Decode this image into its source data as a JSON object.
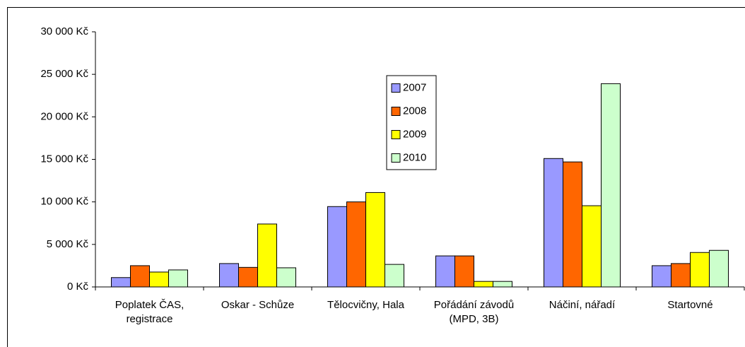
{
  "chart_data": {
    "type": "bar",
    "categories": [
      "Poplatek ČAS, registrace",
      "Oskar - Schůze",
      "Tělocvičny, Hala",
      "Pořádání závodů (MPD, 3B)",
      "Náčiní, nářadí",
      "Startovné"
    ],
    "series": [
      {
        "name": "2007",
        "color": "#9999ff",
        "values": [
          1100,
          2750,
          9450,
          3650,
          15100,
          2500
        ]
      },
      {
        "name": "2008",
        "color": "#ff6600",
        "values": [
          2500,
          2300,
          10000,
          3650,
          14700,
          2750
        ]
      },
      {
        "name": "2009",
        "color": "#ffff00",
        "values": [
          1750,
          7400,
          11100,
          650,
          9550,
          4050
        ]
      },
      {
        "name": "2010",
        "color": "#ccffcc",
        "values": [
          2000,
          2250,
          2650,
          650,
          23900,
          4300
        ]
      }
    ],
    "ylim": [
      0,
      30000
    ],
    "yticks": [
      {
        "value": 0,
        "label": "0 Kč"
      },
      {
        "value": 5000,
        "label": "5 000 Kč"
      },
      {
        "value": 10000,
        "label": "10 000 Kč"
      },
      {
        "value": 15000,
        "label": "15 000 Kč"
      },
      {
        "value": 20000,
        "label": "20 000 Kč"
      },
      {
        "value": 25000,
        "label": "25 000 Kč"
      },
      {
        "value": 30000,
        "label": "30 000 Kč"
      }
    ],
    "grid": false,
    "legend": "center"
  }
}
